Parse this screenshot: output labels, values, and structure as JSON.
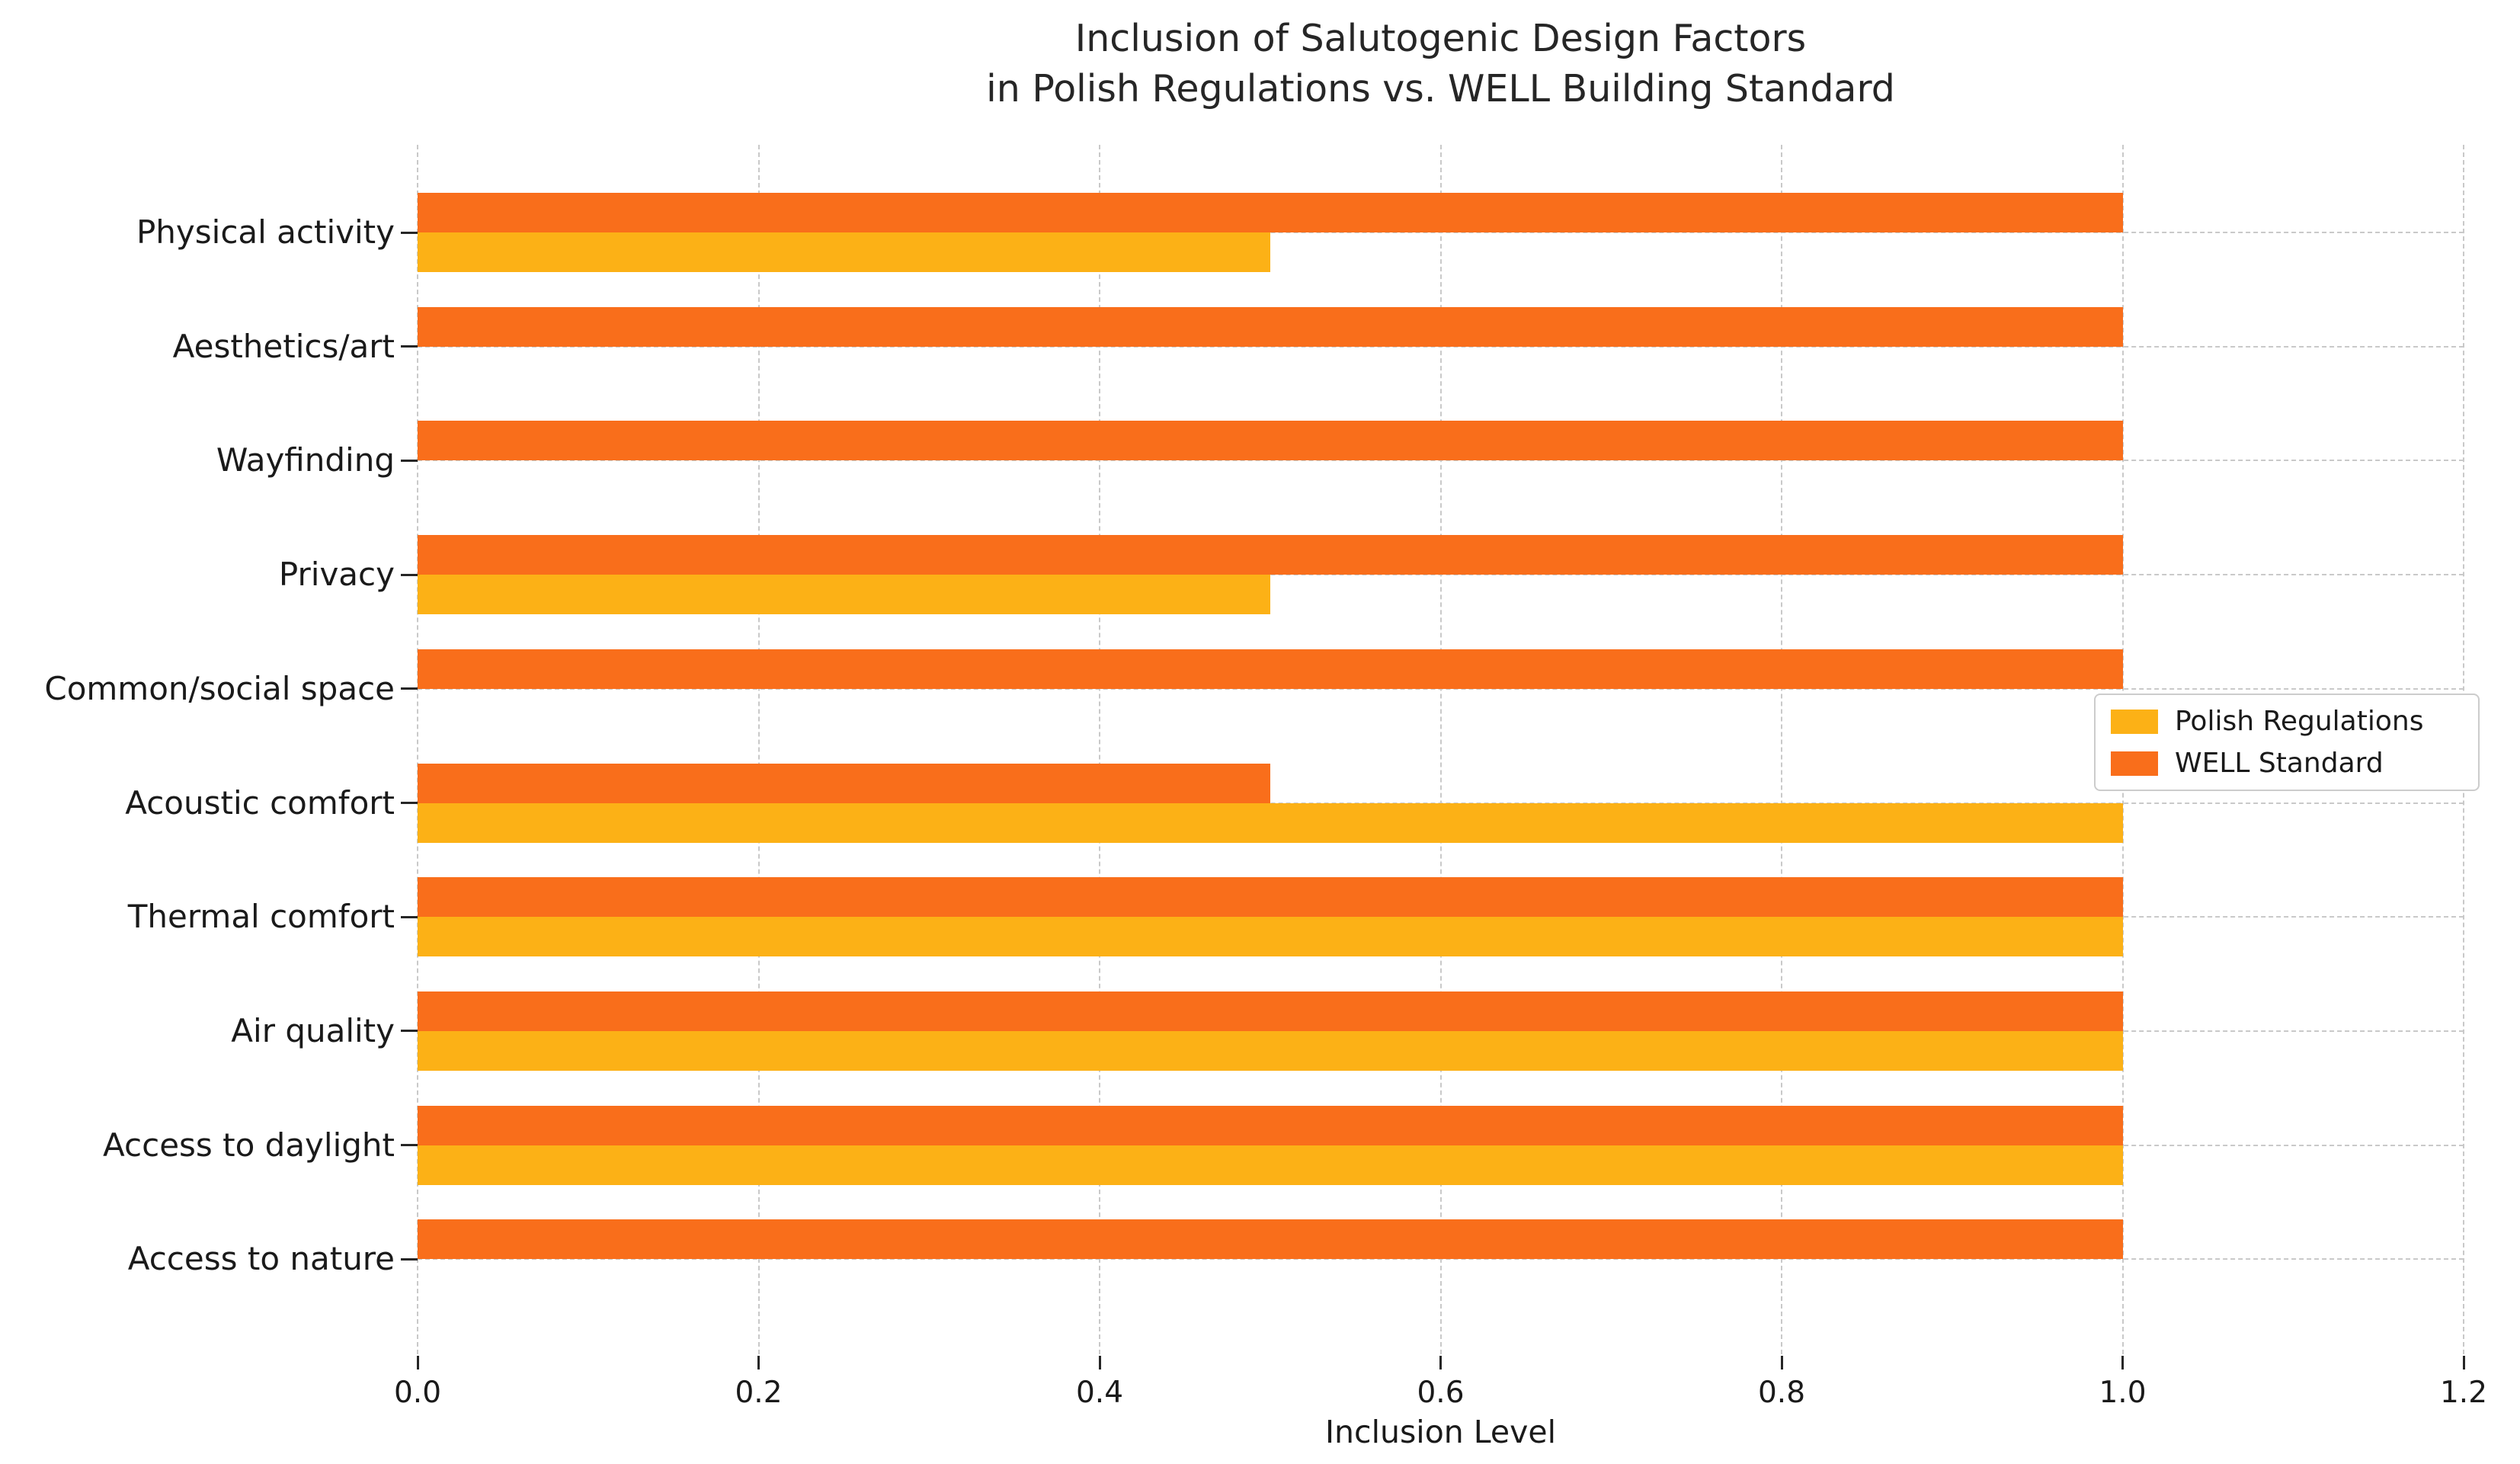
{
  "title_line1": "Inclusion of Salutogenic Design Factors",
  "title_line2": "in Polish Regulations vs. WELL Building Standard",
  "chart_data": {
    "type": "bar",
    "orientation": "horizontal",
    "title": "Inclusion of Salutogenic Design Factors\nin Polish Regulations vs. WELL Building Standard",
    "categories": [
      "Physical activity",
      "Aesthetics/art",
      "Wayfinding",
      "Privacy",
      "Common/social space",
      "Acoustic comfort",
      "Thermal comfort",
      "Air quality",
      "Access to daylight",
      "Access to nature"
    ],
    "series": [
      {
        "name": "Polish Regulations",
        "color": "#FCB116",
        "values": [
          0.5,
          0,
          0,
          0.5,
          0,
          1.0,
          1.0,
          1.0,
          1.0,
          0
        ]
      },
      {
        "name": "WELL Standard",
        "color": "#F96E1B",
        "values": [
          1.0,
          1.0,
          1.0,
          1.0,
          1.0,
          0.5,
          1.0,
          1.0,
          1.0,
          1.0
        ]
      }
    ],
    "xlabel": "Inclusion Level",
    "xlim": [
      0.0,
      1.2
    ],
    "xticks": [
      "0.0",
      "0.2",
      "0.4",
      "0.6",
      "0.8",
      "1.0",
      "1.2"
    ],
    "grid": "dashed-both-axes",
    "grid_color": "#c9c9c9",
    "legend_position": "center-right",
    "legend_order": [
      "Polish Regulations",
      "WELL Standard"
    ]
  }
}
